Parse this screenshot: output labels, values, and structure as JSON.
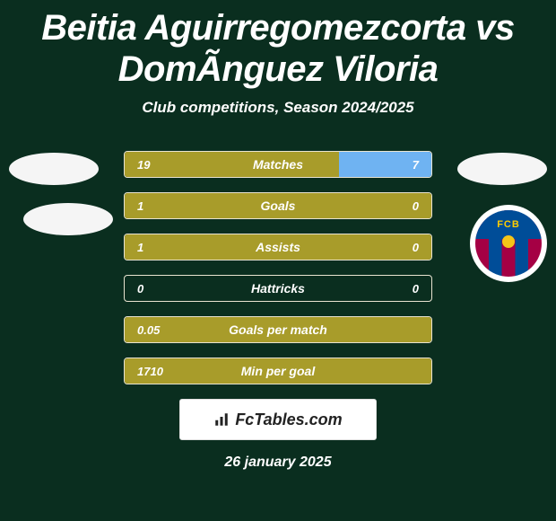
{
  "header": {
    "title": "Beitia Aguirregomezcorta vs DomÃ­nguez Viloria",
    "subtitle": "Club competitions, Season 2024/2025"
  },
  "date": "26 january 2025",
  "brand": {
    "label": "FcTables.com"
  },
  "crest_right": {
    "label": "FCB"
  },
  "colors": {
    "left_fill": "#a89c2a",
    "right_fill": "#6fb3f2",
    "border": "#e8e3d0",
    "bg": "#0a2e1f",
    "avatar": "#f5f5f5"
  },
  "rows": [
    {
      "label": "Matches",
      "left": "19",
      "right": "7",
      "left_pct": 70,
      "right_pct": 30
    },
    {
      "label": "Goals",
      "left": "1",
      "right": "0",
      "left_pct": 100,
      "right_pct": 0
    },
    {
      "label": "Assists",
      "left": "1",
      "right": "0",
      "left_pct": 100,
      "right_pct": 0
    },
    {
      "label": "Hattricks",
      "left": "0",
      "right": "0",
      "left_pct": 0,
      "right_pct": 0
    },
    {
      "label": "Goals per match",
      "left": "0.05",
      "right": "",
      "left_pct": 100,
      "right_pct": 0
    },
    {
      "label": "Min per goal",
      "left": "1710",
      "right": "",
      "left_pct": 100,
      "right_pct": 0
    }
  ]
}
